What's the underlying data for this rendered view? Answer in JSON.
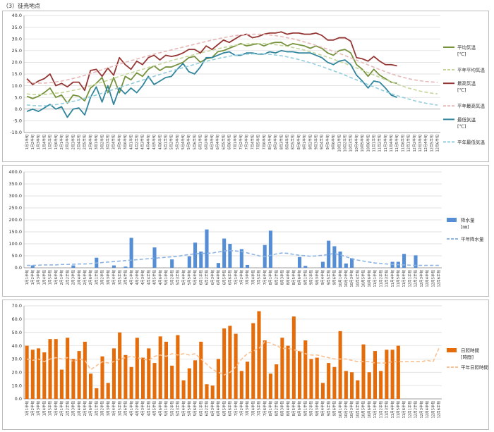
{
  "page": {
    "title": "（3）徒尭地点"
  },
  "x_labels": [
    "1月1半旬",
    "1月2半旬",
    "1月3半旬",
    "1月4半旬",
    "1月5半旬",
    "1月6半旬",
    "2月1半旬",
    "2月2半旬",
    "2月3半旬",
    "2月4半旬",
    "2月5半旬",
    "2月6半旬",
    "3月1半旬",
    "3月2半旬",
    "3月3半旬",
    "3月4半旬",
    "3月5半旬",
    "3月6半旬",
    "4月1半旬",
    "4月2半旬",
    "4月3半旬",
    "4月4半旬",
    "4月5半旬",
    "4月6半旬",
    "5月1半旬",
    "5月2半旬",
    "5月3半旬",
    "5月4半旬",
    "5月5半旬",
    "5月6半旬",
    "6月1半旬",
    "6月2半旬",
    "6月3半旬",
    "6月4半旬",
    "6月5半旬",
    "6月6半旬",
    "7月1半旬",
    "7月2半旬",
    "7月3半旬",
    "7月4半旬",
    "7月5半旬",
    "7月6半旬",
    "8月1半旬",
    "8月2半旬",
    "8月3半旬",
    "8月4半旬",
    "8月5半旬",
    "8月6半旬",
    "9月1半旬",
    "9月2半旬",
    "9月3半旬",
    "9月4半旬",
    "9月5半旬",
    "9月6半旬",
    "10月1半旬",
    "10月2半旬",
    "10月3半旬",
    "10月4半旬",
    "10月5半旬",
    "10月6半旬",
    "11月1半旬",
    "11月2半旬",
    "11月3半旬",
    "11月4半旬",
    "11月5半旬",
    "11月6半旬",
    "12月1半旬",
    "12月2半旬",
    "12月3半旬",
    "12月4半旬",
    "12月5半旬",
    "12月6半旬"
  ],
  "chart_data": [
    {
      "type": "line",
      "ylim": [
        -10,
        40
      ],
      "yticks": [
        "-10.0",
        "-5.0",
        "0.0",
        "5.0",
        "10.0",
        "15.0",
        "20.0",
        "25.0",
        "30.0",
        "35.0",
        "40.0"
      ],
      "grid": true,
      "legend_position": "right",
      "series": [
        {
          "name": "平均気温",
          "unit": "[℃]",
          "color": "#76923c",
          "style": "solid",
          "values": [
            5.5,
            4.5,
            5.5,
            7,
            9,
            5,
            6,
            2.5,
            6,
            5.5,
            3.5,
            9,
            11,
            13.5,
            7,
            13.5,
            7,
            14,
            12.5,
            15.5,
            14,
            17,
            18.5,
            16.5,
            18,
            18,
            19,
            20,
            22,
            22.5,
            20,
            21.5,
            22,
            24.5,
            25,
            26,
            27,
            28,
            27,
            27.5,
            28,
            27,
            28,
            28.5,
            28.5,
            27,
            28,
            27.5,
            27,
            26,
            27,
            26,
            24,
            23,
            25,
            25.5,
            24,
            19,
            17,
            14,
            17,
            14.5,
            13,
            11.5,
            11
          ]
        },
        {
          "name": "平年平均気温",
          "color": "#c3d69b",
          "style": "dash",
          "values": [
            6.5,
            6.2,
            6.2,
            6.3,
            6.5,
            6.8,
            7,
            7.5,
            8,
            8.5,
            9.2,
            10,
            10.8,
            11.5,
            12.3,
            13.1,
            14,
            14.8,
            15.5,
            16.3,
            17,
            17.8,
            18.5,
            19.2,
            20,
            20.7,
            21.4,
            22,
            22.7,
            23.3,
            24,
            24.6,
            25.2,
            25.8,
            26.3,
            26.8,
            27.3,
            27.6,
            27.8,
            28,
            28,
            28,
            27.8,
            27.5,
            27.2,
            26.8,
            26.3,
            25.8,
            25.2,
            24.5,
            23.8,
            23,
            22.2,
            21.3,
            20.4,
            19.5,
            18.6,
            17.6,
            16.6,
            15.6,
            14.6,
            13.6,
            12.6,
            11.6,
            10.7,
            9.8,
            9,
            8.3,
            7.7,
            7.2,
            6.8,
            6.5
          ]
        },
        {
          "name": "最高気温",
          "unit": "[℃]",
          "color": "#953735",
          "style": "solid",
          "values": [
            13,
            10.5,
            12,
            13,
            15,
            10,
            11,
            9.5,
            11.5,
            11.5,
            8,
            16.5,
            17,
            14,
            17.5,
            14.5,
            22,
            19,
            17,
            20.5,
            19,
            22,
            23,
            21,
            23,
            22.5,
            23,
            24,
            25.5,
            25.5,
            24,
            27,
            25.5,
            27.5,
            29.5,
            28.5,
            30,
            31.5,
            32,
            30.5,
            31,
            32,
            32.5,
            32.5,
            33,
            32,
            32.5,
            32.5,
            32,
            32,
            32.5,
            31.5,
            29.5,
            29.5,
            30.5,
            30.5,
            29,
            22,
            21.5,
            20.5,
            22.5,
            20.5,
            19,
            19,
            18.5
          ]
        },
        {
          "name": "平年最高気温",
          "color": "#e6b9b8",
          "style": "dash",
          "values": [
            11.5,
            11.2,
            11.1,
            11.1,
            11.3,
            11.6,
            12,
            12.5,
            13.1,
            13.7,
            14.4,
            15.2,
            16,
            16.8,
            17.6,
            18.4,
            19.2,
            20,
            20.7,
            21.4,
            22.1,
            22.8,
            23.5,
            24.1,
            24.7,
            25.3,
            25.9,
            26.5,
            27.1,
            27.7,
            28.3,
            28.9,
            29.5,
            30,
            30.5,
            31,
            31.4,
            31.7,
            31.9,
            32,
            32,
            31.9,
            31.7,
            31.4,
            31,
            30.5,
            30,
            29.4,
            28.7,
            28,
            27.2,
            26.4,
            25.6,
            24.7,
            23.8,
            22.9,
            21.9,
            20.9,
            19.9,
            18.9,
            17.9,
            16.9,
            16,
            15.1,
            14.3,
            13.6,
            13,
            12.5,
            12.1,
            11.8,
            11.6,
            11.4
          ]
        },
        {
          "name": "最低気温",
          "unit": "[℃]",
          "color": "#31859c",
          "style": "solid",
          "values": [
            -1,
            0,
            -1,
            0.5,
            2,
            0,
            1,
            -3.5,
            0,
            0.5,
            -2.5,
            5,
            9.5,
            3,
            10,
            2,
            9,
            6.5,
            9,
            7,
            10,
            14,
            10.5,
            12,
            13.5,
            14,
            17,
            19.5,
            16,
            15,
            18,
            22,
            22,
            23,
            24,
            24.5,
            23,
            23,
            24,
            24,
            23.5,
            23.5,
            24.5,
            24,
            25,
            24.5,
            24.5,
            24,
            24,
            24,
            23,
            22,
            20,
            19,
            20.5,
            21,
            19,
            14.5,
            12,
            9,
            12,
            11.5,
            9,
            6,
            5
          ]
        },
        {
          "name": "平年最低気温",
          "color": "#93cddd",
          "style": "dash",
          "values": [
            1.8,
            1.5,
            1.4,
            1.4,
            1.6,
            1.9,
            2.3,
            2.8,
            3.3,
            3.9,
            4.6,
            5.3,
            6,
            6.8,
            7.6,
            8.4,
            9.2,
            10,
            10.8,
            11.6,
            12.4,
            13.2,
            14,
            14.8,
            15.6,
            16.3,
            17,
            17.7,
            18.4,
            19.1,
            19.8,
            20.4,
            21,
            21.6,
            22.1,
            22.6,
            23,
            23.3,
            23.5,
            23.6,
            23.7,
            23.6,
            23.4,
            23.1,
            22.8,
            22.3,
            21.8,
            21.2,
            20.5,
            19.8,
            19,
            18.2,
            17.3,
            16.4,
            15.5,
            14.5,
            13.5,
            12.5,
            11.5,
            10.5,
            9.5,
            8.5,
            7.5,
            6.6,
            5.8,
            5,
            4.3,
            3.6,
            3,
            2.5,
            2.1,
            1.7
          ]
        }
      ]
    },
    {
      "type": "bar",
      "ylim": [
        0,
        400
      ],
      "yticks": [
        "0.0",
        "50.0",
        "100.0",
        "150.0",
        "200.0",
        "250.0",
        "300.0",
        "350.0",
        "400.0"
      ],
      "grid": true,
      "legend_position": "right",
      "series": [
        {
          "name": "降水量",
          "unit": "[㎜]",
          "color": "#558ed5",
          "kind": "bar",
          "values": [
            0,
            10,
            0,
            0,
            0,
            0,
            0,
            0,
            10,
            0,
            0,
            0,
            42,
            0,
            0,
            10,
            0,
            5,
            125,
            0,
            0,
            0,
            85,
            0,
            0,
            35,
            0,
            0,
            48,
            105,
            68,
            160,
            0,
            20,
            122,
            100,
            0,
            78,
            12,
            0,
            0,
            95,
            155,
            0,
            0,
            0,
            0,
            45,
            8,
            0,
            0,
            25,
            113,
            90,
            68,
            18,
            40,
            0,
            0,
            0,
            0,
            0,
            0,
            25,
            25,
            58,
            0,
            52,
            0,
            0,
            0,
            0
          ]
        },
        {
          "name": "平年降水量",
          "color": "#8db4e2",
          "style": "dash",
          "kind": "line",
          "values": [
            10,
            10,
            11,
            12,
            12,
            12,
            14,
            14,
            15,
            16,
            16,
            17,
            20,
            22,
            24,
            26,
            28,
            30,
            32,
            34,
            36,
            38,
            40,
            42,
            44,
            46,
            48,
            52,
            56,
            58,
            60,
            60,
            62,
            66,
            70,
            72,
            70,
            68,
            62,
            56,
            50,
            46,
            52,
            58,
            62,
            60,
            56,
            52,
            50,
            48,
            50,
            52,
            56,
            60,
            54,
            46,
            38,
            32,
            28,
            24,
            20,
            18,
            16,
            14,
            13,
            12,
            11,
            10,
            10,
            10,
            10,
            10
          ]
        }
      ]
    },
    {
      "type": "bar",
      "ylim": [
        0,
        70
      ],
      "yticks": [
        "0.0",
        "10.0",
        "20.0",
        "30.0",
        "40.0",
        "50.0",
        "60.0",
        "70.0"
      ],
      "grid": true,
      "legend_position": "right",
      "series": [
        {
          "name": "日照時間",
          "unit": "[時間]",
          "color": "#e46c0a",
          "kind": "bar",
          "values": [
            40,
            37,
            38,
            35,
            45,
            45,
            22,
            46,
            30,
            36,
            43,
            19,
            8,
            32,
            12,
            38,
            50,
            33,
            24,
            46,
            31,
            38,
            27,
            47,
            43,
            25,
            48,
            14,
            23,
            29,
            43,
            11,
            10,
            30,
            53,
            55,
            49,
            21,
            28,
            57,
            66,
            44,
            19,
            26,
            46,
            40,
            62,
            36,
            44,
            30,
            31,
            12,
            27,
            24,
            51,
            21,
            20,
            14,
            41,
            20,
            36,
            21,
            37,
            37,
            40,
            0,
            0,
            0,
            0,
            0,
            0,
            0
          ]
        },
        {
          "name": "平年日照時間",
          "color": "#fac090",
          "style": "dash",
          "kind": "line",
          "values": [
            30,
            29,
            30,
            28,
            30,
            31,
            30,
            31,
            28,
            30,
            29,
            22,
            25,
            28,
            27,
            28,
            30,
            31,
            32,
            31,
            30,
            29,
            32,
            33,
            32,
            34,
            33,
            34,
            33,
            34,
            30,
            26,
            22,
            20,
            18,
            20,
            24,
            30,
            34,
            36,
            38,
            43,
            42,
            40,
            38,
            38,
            37,
            36,
            34,
            33,
            33,
            32,
            31,
            30,
            30,
            30,
            29,
            28,
            28,
            28,
            27,
            27,
            27,
            28,
            28,
            28,
            28,
            28,
            28,
            29,
            28,
            38
          ]
        }
      ]
    }
  ]
}
